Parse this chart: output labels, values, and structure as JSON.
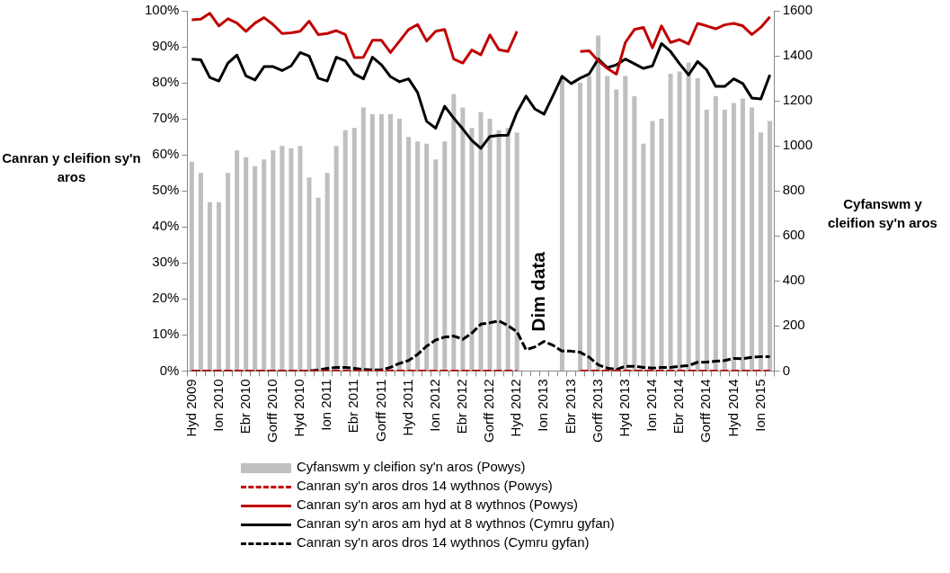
{
  "chart_data": {
    "type": "bar",
    "xlabel": null,
    "ylabel": "Canran y cleifion sy'n aros",
    "y2label": "Cyfanswm y cleifion sy'n aros",
    "annotations": [
      "Dim data"
    ],
    "categories": [
      "Hyd 2009",
      null,
      null,
      "Ion 2010",
      null,
      null,
      "Ebr 2010",
      null,
      null,
      "Gorff 2010",
      null,
      null,
      "Hyd 2010",
      null,
      null,
      "Ion 2011",
      null,
      null,
      "Ebr 2011",
      null,
      null,
      "Gorff 2011",
      null,
      null,
      "Hyd 2011",
      null,
      null,
      "Ion 2012",
      null,
      null,
      "Ebr 2012",
      null,
      null,
      "Gorff 2012",
      null,
      null,
      "Hyd 2012",
      null,
      null,
      "Ion 2013",
      null,
      null,
      "Ebr 2013",
      null,
      null,
      "Gorff 2013",
      null,
      null,
      "Hyd 2013",
      null,
      null,
      "Ion 2014",
      null,
      null,
      "Ebr 2014",
      null,
      null,
      "Gorff 2014",
      null,
      null,
      "Hyd 2014",
      null,
      null,
      "Ion 2015",
      null
    ],
    "ylim": [
      0,
      100
    ],
    "yticks": [
      {
        "value": 0,
        "label": "0%"
      },
      {
        "value": 10,
        "label": "10%"
      },
      {
        "value": 20,
        "label": "20%"
      },
      {
        "value": 30,
        "label": "30%"
      },
      {
        "value": 40,
        "label": "40%"
      },
      {
        "value": 50,
        "label": "50%"
      },
      {
        "value": 60,
        "label": "60%"
      },
      {
        "value": 70,
        "label": "70%"
      },
      {
        "value": 80,
        "label": "80%"
      },
      {
        "value": 90,
        "label": "90%"
      },
      {
        "value": 100,
        "label": "100%"
      }
    ],
    "y2lim": [
      0,
      1600
    ],
    "y2ticks": [
      0,
      200,
      400,
      600,
      800,
      1000,
      1200,
      1400,
      1600
    ],
    "grid": false,
    "legend": "bottom",
    "series": [
      {
        "name": "Cyfanswm y cleifion sy'n aros (Powys)",
        "type": "bar",
        "axis": "y2",
        "color": "#bfbfbf",
        "values": [
          930,
          880,
          750,
          750,
          880,
          980,
          950,
          910,
          940,
          980,
          1000,
          990,
          1000,
          860,
          770,
          880,
          1000,
          1070,
          1080,
          1170,
          1140,
          1140,
          1140,
          1120,
          1040,
          1020,
          1010,
          940,
          1020,
          1230,
          1170,
          1080,
          1150,
          1120,
          1070,
          1080,
          1060,
          null,
          null,
          null,
          null,
          1310,
          null,
          1280,
          1310,
          1490,
          1310,
          1250,
          1310,
          1220,
          1010,
          1110,
          1120,
          1320,
          1330,
          1370,
          1300,
          1160,
          1220,
          1160,
          1190,
          1210,
          1170,
          1060,
          1110
        ]
      },
      {
        "name": "Canran sy'n aros dros 14 wythnos (Powys)",
        "type": "line",
        "axis": "y",
        "line_style": "dashed",
        "color": "#c00000",
        "values": [
          0,
          0,
          0,
          0,
          0,
          0,
          0,
          0,
          0,
          0,
          0,
          0,
          0,
          0,
          0,
          0,
          0,
          0,
          0,
          0,
          0,
          0,
          0,
          0,
          0,
          0,
          0,
          0,
          0,
          0,
          0,
          0,
          0,
          0,
          0,
          0,
          0,
          null,
          null,
          null,
          null,
          null,
          null,
          0,
          0,
          0,
          0,
          0,
          0,
          0,
          0,
          0,
          0,
          0,
          0,
          0,
          0,
          0,
          0,
          0,
          0,
          0,
          0,
          0,
          0
        ]
      },
      {
        "name": "Canran sy'n aros am hyd at 8 wythnos (Powys)",
        "type": "line",
        "axis": "y",
        "line_style": "solid",
        "color": "#c00000",
        "values": [
          97.5,
          97.7,
          99.3,
          95.8,
          97.8,
          96.6,
          94.3,
          96.6,
          98.1,
          96.2,
          93.7,
          93.9,
          94.3,
          97.1,
          93.4,
          93.7,
          94.5,
          93.4,
          87.0,
          87.1,
          91.8,
          91.8,
          88.4,
          91.6,
          94.8,
          96.2,
          91.6,
          94.3,
          94.8,
          86.6,
          85.5,
          89.1,
          87.8,
          93.3,
          89.2,
          88.7,
          94.3,
          null,
          null,
          null,
          null,
          null,
          null,
          88.7,
          88.9,
          86.1,
          84.0,
          82.4,
          91.2,
          94.8,
          95.4,
          89.7,
          95.8,
          91.2,
          92.0,
          90.8,
          96.5,
          95.8,
          95.0,
          96.1,
          96.5,
          95.8,
          93.4,
          95.4,
          98.3
        ]
      },
      {
        "name": "Canran sy'n aros am hyd at 8 wythnos (Cymru gyfan)",
        "type": "line",
        "axis": "y",
        "line_style": "solid",
        "color": "#000000",
        "values": [
          86.6,
          86.4,
          81.5,
          80.5,
          85.5,
          87.7,
          81.9,
          80.8,
          84.5,
          84.5,
          83.4,
          84.7,
          88.4,
          87.4,
          81.3,
          80.5,
          87.1,
          86.1,
          82.5,
          81.1,
          87.1,
          85.0,
          81.7,
          80.3,
          81.1,
          77.3,
          69.3,
          67.4,
          73.5,
          70.2,
          67.2,
          64.0,
          61.8,
          65.1,
          65.4,
          65.5,
          71.8,
          76.3,
          72.7,
          71.3,
          76.5,
          81.8,
          79.8,
          81.3,
          82.5,
          86.6,
          84.2,
          85.0,
          86.6,
          85.3,
          84.0,
          84.7,
          90.9,
          88.7,
          85.3,
          82.2,
          85.9,
          83.6,
          79.0,
          79.0,
          81.1,
          79.8,
          75.8,
          75.5,
          82.2
        ]
      },
      {
        "name": "Canran sy'n aros dros 14 wythnos (Cymru gyfan)",
        "type": "line",
        "axis": "y",
        "line_style": "dashed",
        "color": "#000000",
        "values": [
          0,
          0,
          0,
          0,
          0,
          0,
          0,
          0,
          0,
          0,
          0,
          0,
          0,
          0,
          0.3,
          0.7,
          1.0,
          1.0,
          0.7,
          0.4,
          0.3,
          0.3,
          1.0,
          2.1,
          2.9,
          4.6,
          6.9,
          8.6,
          9.4,
          9.7,
          8.8,
          10.5,
          13.0,
          13.4,
          13.9,
          12.6,
          10.9,
          5.9,
          6.7,
          8.2,
          7.1,
          5.5,
          5.5,
          5.2,
          3.8,
          1.7,
          0.8,
          0.4,
          1.3,
          1.3,
          1.0,
          0.8,
          1.0,
          1.0,
          1.3,
          1.5,
          2.4,
          2.5,
          2.7,
          2.9,
          3.5,
          3.4,
          3.8,
          4.0,
          4.0
        ]
      }
    ]
  }
}
